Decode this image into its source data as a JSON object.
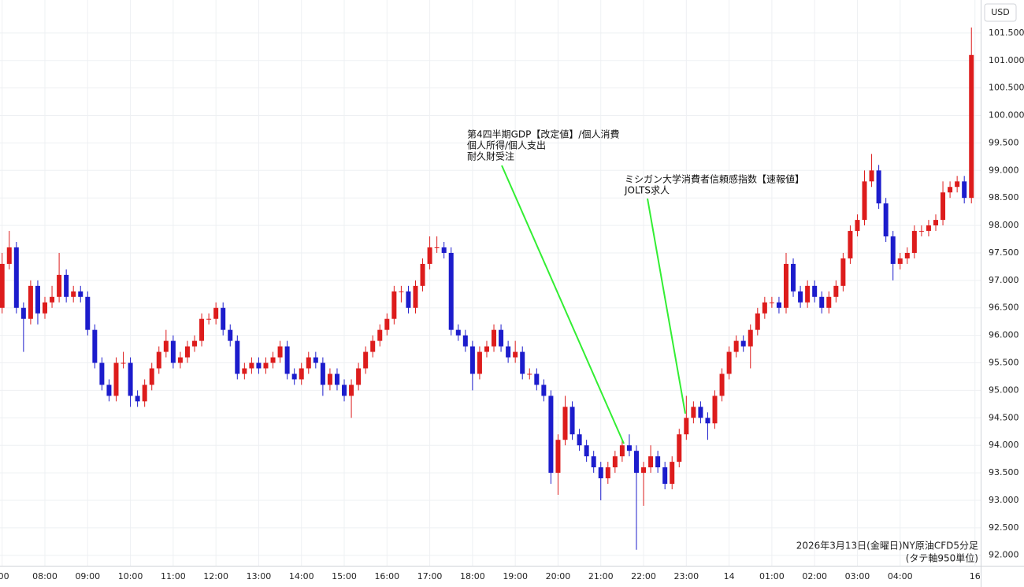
{
  "chart_data": {
    "type": "candlestick",
    "unit": "USD",
    "up_color": "#dd1c1c",
    "down_color": "#1c1ccc",
    "annotation_color": "#33ee33",
    "grid": true,
    "xlim": [
      -3,
      1373
    ],
    "ylim": [
      91.81,
      102.1
    ],
    "xticks": [
      {
        "value": 0,
        "label": ":00"
      },
      {
        "value": 60,
        "label": "08:00"
      },
      {
        "value": 120,
        "label": "09:00"
      },
      {
        "value": 180,
        "label": "10:00"
      },
      {
        "value": 240,
        "label": "11:00"
      },
      {
        "value": 300,
        "label": "12:00"
      },
      {
        "value": 360,
        "label": "13:00"
      },
      {
        "value": 420,
        "label": "14:00"
      },
      {
        "value": 480,
        "label": "15:00"
      },
      {
        "value": 540,
        "label": "16:00"
      },
      {
        "value": 600,
        "label": "17:00"
      },
      {
        "value": 660,
        "label": "18:00"
      },
      {
        "value": 720,
        "label": "19:00"
      },
      {
        "value": 780,
        "label": "20:00"
      },
      {
        "value": 840,
        "label": "21:00"
      },
      {
        "value": 900,
        "label": "22:00"
      },
      {
        "value": 960,
        "label": "23:00"
      },
      {
        "value": 1020,
        "label": "14"
      },
      {
        "value": 1080,
        "label": "01:00"
      },
      {
        "value": 1140,
        "label": "02:00"
      },
      {
        "value": 1200,
        "label": "03:00"
      },
      {
        "value": 1260,
        "label": "04:00"
      },
      {
        "value": 1365,
        "label": "16"
      }
    ],
    "yticks": [
      {
        "value": 92,
        "label": "92.000"
      },
      {
        "value": 92.5,
        "label": "92.500"
      },
      {
        "value": 93,
        "label": "93.000"
      },
      {
        "value": 93.5,
        "label": "93.500"
      },
      {
        "value": 94,
        "label": "94.000"
      },
      {
        "value": 94.5,
        "label": "94.500"
      },
      {
        "value": 95,
        "label": "95.000"
      },
      {
        "value": 95.5,
        "label": "95.500"
      },
      {
        "value": 96,
        "label": "96.000"
      },
      {
        "value": 96.5,
        "label": "96.500"
      },
      {
        "value": 97,
        "label": "97.000"
      },
      {
        "value": 97.5,
        "label": "97.500"
      },
      {
        "value": 98,
        "label": "98.000"
      },
      {
        "value": 98.5,
        "label": "98.500"
      },
      {
        "value": 99,
        "label": "99.000"
      },
      {
        "value": 99.5,
        "label": "99.500"
      },
      {
        "value": 100,
        "label": "100.000"
      },
      {
        "value": 100.5,
        "label": "100.500"
      },
      {
        "value": 101,
        "label": "101.000"
      },
      {
        "value": 101.5,
        "label": "101.500"
      }
    ],
    "x": [
      0,
      10,
      20,
      30,
      40,
      50,
      60,
      70,
      80,
      90,
      100,
      110,
      120,
      130,
      140,
      150,
      160,
      170,
      180,
      190,
      200,
      210,
      220,
      230,
      240,
      250,
      260,
      270,
      280,
      290,
      300,
      310,
      320,
      330,
      340,
      350,
      360,
      370,
      380,
      390,
      400,
      410,
      420,
      430,
      440,
      450,
      460,
      470,
      480,
      490,
      500,
      510,
      520,
      530,
      540,
      550,
      560,
      570,
      580,
      590,
      600,
      610,
      620,
      630,
      640,
      650,
      660,
      670,
      680,
      690,
      700,
      710,
      720,
      730,
      740,
      750,
      760,
      770,
      780,
      790,
      800,
      810,
      820,
      830,
      840,
      850,
      860,
      870,
      880,
      890,
      900,
      910,
      920,
      930,
      940,
      950,
      960,
      970,
      980,
      990,
      1000,
      1010,
      1020,
      1030,
      1040,
      1050,
      1060,
      1070,
      1080,
      1090,
      1100,
      1110,
      1120,
      1130,
      1140,
      1150,
      1160,
      1170,
      1180,
      1190,
      1200,
      1210,
      1220,
      1230,
      1240,
      1250,
      1260,
      1270,
      1280,
      1290,
      1300,
      1310,
      1320,
      1330,
      1340,
      1350,
      1360
    ],
    "ohlc": [
      [
        96.5,
        97.5,
        96.4,
        97.3
      ],
      [
        97.3,
        97.9,
        97.2,
        97.6
      ],
      [
        97.6,
        97.7,
        96.4,
        96.5
      ],
      [
        96.5,
        96.6,
        95.7,
        96.3
      ],
      [
        96.3,
        97.0,
        96.2,
        96.9
      ],
      [
        96.9,
        97.0,
        96.2,
        96.4
      ],
      [
        96.4,
        96.7,
        96.3,
        96.6
      ],
      [
        96.6,
        96.9,
        96.5,
        96.7
      ],
      [
        96.7,
        97.5,
        96.6,
        97.1
      ],
      [
        97.1,
        97.2,
        96.6,
        96.7
      ],
      [
        96.7,
        96.9,
        96.6,
        96.8
      ],
      [
        96.8,
        96.9,
        96.6,
        96.7
      ],
      [
        96.7,
        96.8,
        96.0,
        96.1
      ],
      [
        96.1,
        96.2,
        95.4,
        95.5
      ],
      [
        95.5,
        95.6,
        95.0,
        95.1
      ],
      [
        95.1,
        95.2,
        94.8,
        94.9
      ],
      [
        94.9,
        95.6,
        94.8,
        95.5
      ],
      [
        95.5,
        95.7,
        95.4,
        95.5
      ],
      [
        95.5,
        95.6,
        94.7,
        94.9
      ],
      [
        94.9,
        95.0,
        94.7,
        94.8
      ],
      [
        94.8,
        95.2,
        94.7,
        95.1
      ],
      [
        95.1,
        95.5,
        95.0,
        95.4
      ],
      [
        95.4,
        95.8,
        95.3,
        95.7
      ],
      [
        95.7,
        96.1,
        95.6,
        95.9
      ],
      [
        95.9,
        96.0,
        95.4,
        95.5
      ],
      [
        95.5,
        95.7,
        95.4,
        95.6
      ],
      [
        95.6,
        95.9,
        95.5,
        95.8
      ],
      [
        95.8,
        96.0,
        95.7,
        95.9
      ],
      [
        95.9,
        96.4,
        95.8,
        96.3
      ],
      [
        96.3,
        96.4,
        96.2,
        96.3
      ],
      [
        96.3,
        96.6,
        96.2,
        96.5
      ],
      [
        96.5,
        96.6,
        96.0,
        96.1
      ],
      [
        96.1,
        96.2,
        95.8,
        95.9
      ],
      [
        95.9,
        96.0,
        95.2,
        95.3
      ],
      [
        95.3,
        95.5,
        95.2,
        95.4
      ],
      [
        95.4,
        95.6,
        95.3,
        95.5
      ],
      [
        95.5,
        95.6,
        95.3,
        95.4
      ],
      [
        95.4,
        95.6,
        95.3,
        95.5
      ],
      [
        95.5,
        95.7,
        95.4,
        95.6
      ],
      [
        95.6,
        95.9,
        95.5,
        95.8
      ],
      [
        95.8,
        95.9,
        95.2,
        95.3
      ],
      [
        95.3,
        95.4,
        95.1,
        95.2
      ],
      [
        95.2,
        95.5,
        95.1,
        95.4
      ],
      [
        95.4,
        95.7,
        95.3,
        95.6
      ],
      [
        95.6,
        95.7,
        95.4,
        95.5
      ],
      [
        95.5,
        95.6,
        94.9,
        95.1
      ],
      [
        95.1,
        95.4,
        95.0,
        95.3
      ],
      [
        95.3,
        95.4,
        95.0,
        95.1
      ],
      [
        95.1,
        95.2,
        94.8,
        94.9
      ],
      [
        94.9,
        95.2,
        94.5,
        95.1
      ],
      [
        95.1,
        95.5,
        95.0,
        95.4
      ],
      [
        95.4,
        95.8,
        95.3,
        95.7
      ],
      [
        95.7,
        96.0,
        95.6,
        95.9
      ],
      [
        95.9,
        96.2,
        95.8,
        96.1
      ],
      [
        96.1,
        96.4,
        96.0,
        96.3
      ],
      [
        96.3,
        96.9,
        96.2,
        96.8
      ],
      [
        96.8,
        96.9,
        96.6,
        96.8
      ],
      [
        96.8,
        96.9,
        96.4,
        96.5
      ],
      [
        96.5,
        97.0,
        96.4,
        96.9
      ],
      [
        96.9,
        97.4,
        96.8,
        97.3
      ],
      [
        97.3,
        97.8,
        97.2,
        97.6
      ],
      [
        97.6,
        97.8,
        97.5,
        97.6
      ],
      [
        97.6,
        97.7,
        97.4,
        97.5
      ],
      [
        97.5,
        97.6,
        96.0,
        96.1
      ],
      [
        96.1,
        96.2,
        95.9,
        96.0
      ],
      [
        96.0,
        96.1,
        95.7,
        95.8
      ],
      [
        95.8,
        95.9,
        95.0,
        95.3
      ],
      [
        95.3,
        95.8,
        95.2,
        95.7
      ],
      [
        95.7,
        95.9,
        95.6,
        95.8
      ],
      [
        95.8,
        96.2,
        95.7,
        96.1
      ],
      [
        96.1,
        96.2,
        95.7,
        95.8
      ],
      [
        95.8,
        95.9,
        95.5,
        95.6
      ],
      [
        95.6,
        95.9,
        95.5,
        95.7
      ],
      [
        95.7,
        95.8,
        95.2,
        95.3
      ],
      [
        95.3,
        95.4,
        95.2,
        95.3
      ],
      [
        95.3,
        95.4,
        95.0,
        95.1
      ],
      [
        95.1,
        95.2,
        94.8,
        94.9
      ],
      [
        94.9,
        95.0,
        93.3,
        93.5
      ],
      [
        93.5,
        94.2,
        93.1,
        94.1
      ],
      [
        94.1,
        94.9,
        94.0,
        94.7
      ],
      [
        94.7,
        94.8,
        94.1,
        94.2
      ],
      [
        94.2,
        94.3,
        93.9,
        94.0
      ],
      [
        94.0,
        94.1,
        93.7,
        93.8
      ],
      [
        93.8,
        93.9,
        93.5,
        93.6
      ],
      [
        93.6,
        93.7,
        93.0,
        93.4
      ],
      [
        93.4,
        93.7,
        93.3,
        93.6
      ],
      [
        93.6,
        93.9,
        93.5,
        93.8
      ],
      [
        93.8,
        94.1,
        93.7,
        94.0
      ],
      [
        94.0,
        94.2,
        93.8,
        93.9
      ],
      [
        93.9,
        94.0,
        92.1,
        93.5
      ],
      [
        93.5,
        93.7,
        92.9,
        93.6
      ],
      [
        93.6,
        94.0,
        93.5,
        93.8
      ],
      [
        93.8,
        93.9,
        93.5,
        93.6
      ],
      [
        93.6,
        93.7,
        93.2,
        93.3
      ],
      [
        93.3,
        93.8,
        93.2,
        93.7
      ],
      [
        93.7,
        94.3,
        93.6,
        94.2
      ],
      [
        94.2,
        94.9,
        94.1,
        94.5
      ],
      [
        94.5,
        94.8,
        94.4,
        94.7
      ],
      [
        94.7,
        94.8,
        94.4,
        94.5
      ],
      [
        94.5,
        94.6,
        94.1,
        94.4
      ],
      [
        94.4,
        95.0,
        94.3,
        94.9
      ],
      [
        94.9,
        95.4,
        94.8,
        95.3
      ],
      [
        95.3,
        95.8,
        95.2,
        95.7
      ],
      [
        95.7,
        96.0,
        95.6,
        95.9
      ],
      [
        95.9,
        96.0,
        95.7,
        95.8
      ],
      [
        95.8,
        96.2,
        95.4,
        96.1
      ],
      [
        96.1,
        96.5,
        96.0,
        96.4
      ],
      [
        96.4,
        96.7,
        96.3,
        96.6
      ],
      [
        96.6,
        96.7,
        96.5,
        96.6
      ],
      [
        96.6,
        96.7,
        96.4,
        96.5
      ],
      [
        96.5,
        97.5,
        96.4,
        97.3
      ],
      [
        97.3,
        97.4,
        96.7,
        96.8
      ],
      [
        96.8,
        96.9,
        96.5,
        96.6
      ],
      [
        96.6,
        97.0,
        96.5,
        96.9
      ],
      [
        96.9,
        97.0,
        96.6,
        96.7
      ],
      [
        96.7,
        96.8,
        96.4,
        96.5
      ],
      [
        96.5,
        96.8,
        96.4,
        96.7
      ],
      [
        96.7,
        97.0,
        96.6,
        96.9
      ],
      [
        96.9,
        97.5,
        96.8,
        97.4
      ],
      [
        97.4,
        98.0,
        97.3,
        97.9
      ],
      [
        97.9,
        98.2,
        97.8,
        98.1
      ],
      [
        98.1,
        99.0,
        98.0,
        98.8
      ],
      [
        98.8,
        99.3,
        98.7,
        99.0
      ],
      [
        99.0,
        99.1,
        98.3,
        98.4
      ],
      [
        98.4,
        98.5,
        97.7,
        97.8
      ],
      [
        97.8,
        97.9,
        97.0,
        97.3
      ],
      [
        97.3,
        97.5,
        97.2,
        97.4
      ],
      [
        97.4,
        97.6,
        97.3,
        97.5
      ],
      [
        97.5,
        98.0,
        97.4,
        97.9
      ],
      [
        97.9,
        98.0,
        97.8,
        97.9
      ],
      [
        97.9,
        98.1,
        97.8,
        98.0
      ],
      [
        98.0,
        98.2,
        97.9,
        98.1
      ],
      [
        98.1,
        98.8,
        98.0,
        98.6
      ],
      [
        98.6,
        98.8,
        98.5,
        98.7
      ],
      [
        98.7,
        98.9,
        98.6,
        98.8
      ],
      [
        98.8,
        98.9,
        98.4,
        98.5
      ],
      [
        98.5,
        101.6,
        98.4,
        101.1
      ]
    ],
    "annotations": [
      {
        "lines": [
          "第4四半期GDP【改定値】/個人消費",
          "個人所得/個人支出",
          "耐久財受注"
        ]
      },
      {
        "lines": [
          "ミシガン大学消費者信頼感指数【速報値】",
          "JOLTS求人"
        ]
      }
    ],
    "caption": "2026年3月13日(金曜日)NY原油CFD5分足",
    "note": "(タテ軸950単位)",
    "note_color": "#e01010"
  }
}
